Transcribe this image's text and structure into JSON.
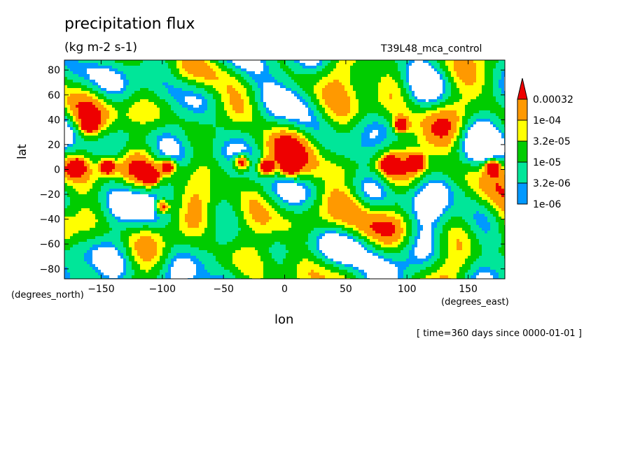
{
  "chart_data": {
    "type": "heatmap",
    "title": "precipitation flux",
    "units": "(kg m-2 s-1)",
    "run_name": "T39L48_mca_control",
    "xlabel": "lon",
    "ylabel": "lat",
    "x_axis_units": "(degrees_east)",
    "y_axis_units": "(degrees_north)",
    "footer": "[ time=360 days since 0000-01-01 ]",
    "xlim": [
      -180,
      180
    ],
    "ylim": [
      -88,
      88
    ],
    "x_ticks": [
      -150,
      -100,
      -50,
      0,
      50,
      100,
      150
    ],
    "y_ticks": [
      80,
      60,
      40,
      20,
      0,
      -20,
      -40,
      -60,
      -80
    ],
    "colorbar": {
      "levels": [
        "1e-06",
        "3.2e-06",
        "1e-05",
        "3.2e-05",
        "1e-04",
        "0.00032"
      ],
      "colors": [
        "#0099ff",
        "#00e699",
        "#00cc00",
        "#ffff00",
        "#ff9900",
        "#ee0000"
      ]
    },
    "maxima": [
      {
        "lon": -170,
        "lat": 2
      },
      {
        "lon": -160,
        "lat": 36
      },
      {
        "lon": -145,
        "lat": 2
      },
      {
        "lon": -110,
        "lat": -6
      },
      {
        "lon": -100,
        "lat": -30
      },
      {
        "lon": -95,
        "lat": 2
      },
      {
        "lon": -35,
        "lat": 6
      },
      {
        "lon": -15,
        "lat": 2
      },
      {
        "lon": 5,
        "lat": 2
      },
      {
        "lon": 85,
        "lat": 4
      },
      {
        "lon": 95,
        "lat": 36
      },
      {
        "lon": 108,
        "lat": 6
      },
      {
        "lon": 170,
        "lat": 2
      }
    ]
  }
}
